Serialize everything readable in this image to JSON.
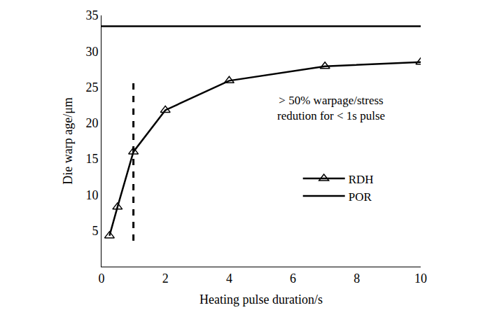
{
  "chart_data": {
    "type": "line",
    "x_label": "Heating pulse duration/s",
    "y_label": "Die warp age/μm",
    "xlim": [
      0,
      10
    ],
    "ylim": [
      0,
      35
    ],
    "xticks": [
      0,
      2,
      4,
      6,
      8,
      10
    ],
    "yticks": [
      5,
      10,
      15,
      20,
      25,
      30,
      35
    ],
    "grid": false,
    "legend": "right",
    "annotation": [
      "> 50% warpage/stress",
      "redution for < 1s pulse"
    ],
    "series": [
      {
        "name": "RDH",
        "color": "#000000",
        "marker": "triangle",
        "line_style": "solid",
        "x": [
          0.25,
          0.5,
          1,
          2,
          4,
          7,
          10
        ],
        "values": [
          4.3,
          8.3,
          16.0,
          21.8,
          25.9,
          27.9,
          28.5
        ]
      },
      {
        "name": "POR",
        "color": "#000000",
        "marker": "none",
        "line_style": "solid",
        "x": [
          0,
          10
        ],
        "values": [
          33.5,
          33.5
        ]
      }
    ],
    "reference_line": {
      "x": 1,
      "values": [
        3.6,
        25.8
      ],
      "color": "#000000",
      "line_style": "dash"
    }
  }
}
